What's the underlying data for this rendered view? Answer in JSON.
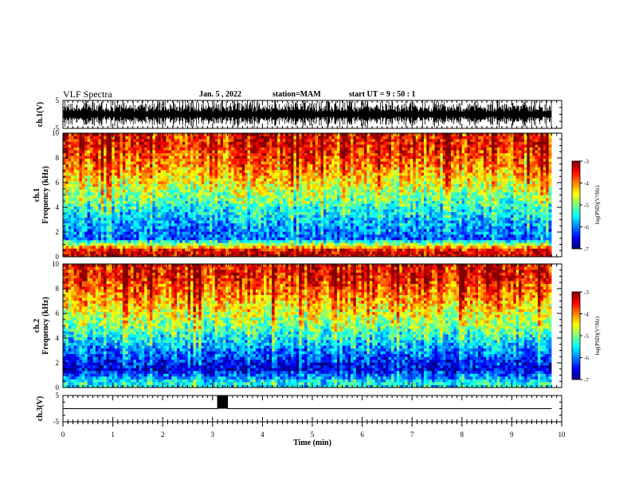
{
  "header": {
    "title": "VLF Spectra",
    "date": "Jan. 5 , 2022",
    "station": "station=MAM",
    "start_time": "start UT = 9 : 50 : 1"
  },
  "chart_data": [
    {
      "type": "line",
      "ylabel": "ch.1(V)",
      "ylim": [
        -5,
        5
      ],
      "yticks": [
        "5",
        "-5"
      ],
      "note": "dense impulsive waveform (sferics) spanning roughly -5 to 5 V across 0-9.8 min"
    },
    {
      "type": "heatmap",
      "ylabel": "ch.1\nFrequency (kHz)",
      "ylim": [
        0,
        10
      ],
      "yticks": [
        "0",
        "2",
        "4",
        "6",
        "8",
        "10"
      ],
      "colorbar": {
        "label": "log(PSD)(V²/Hz)",
        "range": [
          -7,
          -3
        ],
        "ticks": [
          "-3",
          "-4",
          "-5",
          "-6",
          "-7"
        ]
      },
      "profile": [
        {
          "freq_khz": 0.5,
          "log_psd": -3.4
        },
        {
          "freq_khz": 1.5,
          "log_psd": -6.2
        },
        {
          "freq_khz": 3,
          "log_psd": -5.8
        },
        {
          "freq_khz": 5,
          "log_psd": -5.0
        },
        {
          "freq_khz": 7,
          "log_psd": -4.2
        },
        {
          "freq_khz": 9,
          "log_psd": -3.6
        }
      ]
    },
    {
      "type": "heatmap",
      "ylabel": "ch.2\nFrequency (kHz)",
      "ylim": [
        0,
        10
      ],
      "yticks": [
        "0",
        "2",
        "4",
        "6",
        "8",
        "10"
      ],
      "colorbar": {
        "label": "log(PSD)(V²/Hz)",
        "range": [
          -7,
          -3
        ],
        "ticks": [
          "-3",
          "-4",
          "-5",
          "-6",
          "-7"
        ]
      },
      "profile": [
        {
          "freq_khz": 0.5,
          "log_psd": -5.5
        },
        {
          "freq_khz": 1.5,
          "log_psd": -6.7
        },
        {
          "freq_khz": 3,
          "log_psd": -6.0
        },
        {
          "freq_khz": 5,
          "log_psd": -5.0
        },
        {
          "freq_khz": 7,
          "log_psd": -4.2
        },
        {
          "freq_khz": 9,
          "log_psd": -3.5
        }
      ]
    },
    {
      "type": "line",
      "ylabel": "ch.3(V)",
      "ylim": [
        -5,
        5
      ],
      "yticks": [
        "5",
        "-5"
      ],
      "series": [
        {
          "x": [
            0,
            3.1,
            3.1,
            3.3,
            3.3,
            9.8
          ],
          "y": [
            0,
            0,
            5,
            5,
            0,
            0
          ]
        }
      ]
    }
  ],
  "x_axis": {
    "label": "Time (min)",
    "xlim": [
      0,
      10
    ],
    "ticks": [
      "0",
      "1",
      "2",
      "3",
      "4",
      "5",
      "6",
      "7",
      "8",
      "9",
      "10"
    ],
    "data_end_min": 9.8
  }
}
